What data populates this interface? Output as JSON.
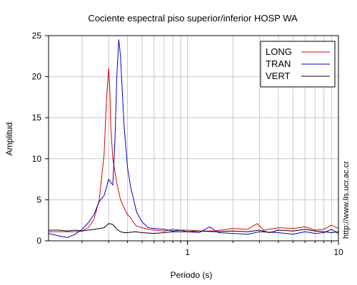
{
  "chart_data": {
    "type": "line",
    "title": "Cociente espectral piso superior/inferior  HOSP WA",
    "xlabel": "Periodo (s)",
    "ylabel": "Amplitud",
    "x_scale": "log",
    "xlim": [
      0.12,
      10
    ],
    "ylim": [
      0,
      25
    ],
    "yticks": [
      0,
      5,
      10,
      15,
      20,
      25
    ],
    "xticks": [
      1,
      10
    ],
    "grid": true,
    "legend_position": "top-right",
    "watermark": "http://www.lis.ucr.ac.cr",
    "series": [
      {
        "name": "LONG",
        "color": "#e00000",
        "points": [
          [
            0.12,
            1.1
          ],
          [
            0.15,
            1.1
          ],
          [
            0.18,
            1.1
          ],
          [
            0.2,
            1.2
          ],
          [
            0.22,
            1.6
          ],
          [
            0.24,
            2.6
          ],
          [
            0.26,
            5.0
          ],
          [
            0.28,
            10.5
          ],
          [
            0.29,
            17.0
          ],
          [
            0.3,
            21.0
          ],
          [
            0.305,
            19.0
          ],
          [
            0.31,
            14.0
          ],
          [
            0.32,
            10.0
          ],
          [
            0.34,
            7.0
          ],
          [
            0.36,
            5.0
          ],
          [
            0.38,
            4.0
          ],
          [
            0.4,
            3.2
          ],
          [
            0.42,
            2.8
          ],
          [
            0.44,
            2.2
          ],
          [
            0.46,
            1.8
          ],
          [
            0.5,
            1.6
          ],
          [
            0.55,
            1.4
          ],
          [
            0.6,
            1.3
          ],
          [
            0.7,
            1.2
          ],
          [
            0.8,
            1.4
          ],
          [
            0.9,
            1.3
          ],
          [
            1.0,
            1.3
          ],
          [
            1.2,
            1.2
          ],
          [
            1.5,
            1.2
          ],
          [
            2.0,
            1.5
          ],
          [
            2.5,
            1.4
          ],
          [
            2.9,
            2.1
          ],
          [
            3.2,
            1.3
          ],
          [
            4.0,
            1.6
          ],
          [
            5.0,
            1.5
          ],
          [
            6.0,
            1.7
          ],
          [
            7.0,
            1.3
          ],
          [
            8.0,
            1.4
          ],
          [
            9.0,
            1.9
          ],
          [
            10.0,
            1.5
          ]
        ]
      },
      {
        "name": "TRAN",
        "color": "#0000d0",
        "points": [
          [
            0.12,
            0.9
          ],
          [
            0.14,
            0.6
          ],
          [
            0.16,
            0.4
          ],
          [
            0.18,
            0.8
          ],
          [
            0.2,
            1.4
          ],
          [
            0.22,
            2.2
          ],
          [
            0.24,
            3.2
          ],
          [
            0.26,
            4.8
          ],
          [
            0.28,
            5.5
          ],
          [
            0.3,
            7.5
          ],
          [
            0.32,
            6.8
          ],
          [
            0.33,
            12.0
          ],
          [
            0.34,
            20.0
          ],
          [
            0.35,
            24.5
          ],
          [
            0.36,
            22.5
          ],
          [
            0.37,
            18.0
          ],
          [
            0.38,
            14.0
          ],
          [
            0.4,
            9.0
          ],
          [
            0.42,
            6.5
          ],
          [
            0.44,
            5.0
          ],
          [
            0.46,
            3.5
          ],
          [
            0.5,
            2.3
          ],
          [
            0.55,
            1.6
          ],
          [
            0.6,
            1.5
          ],
          [
            0.7,
            1.4
          ],
          [
            0.8,
            1.2
          ],
          [
            0.9,
            1.3
          ],
          [
            1.0,
            1.1
          ],
          [
            1.2,
            1.0
          ],
          [
            1.4,
            1.7
          ],
          [
            1.6,
            1.0
          ],
          [
            2.0,
            0.9
          ],
          [
            2.5,
            0.8
          ],
          [
            3.0,
            1.1
          ],
          [
            4.0,
            1.0
          ],
          [
            5.0,
            0.8
          ],
          [
            6.0,
            1.1
          ],
          [
            7.0,
            0.9
          ],
          [
            8.0,
            1.0
          ],
          [
            9.0,
            1.4
          ],
          [
            10.0,
            0.9
          ]
        ]
      },
      {
        "name": "VERT",
        "color": "#000000",
        "points": [
          [
            0.12,
            1.3
          ],
          [
            0.14,
            1.3
          ],
          [
            0.16,
            1.2
          ],
          [
            0.18,
            1.3
          ],
          [
            0.2,
            1.2
          ],
          [
            0.22,
            1.3
          ],
          [
            0.24,
            1.4
          ],
          [
            0.26,
            1.5
          ],
          [
            0.28,
            1.6
          ],
          [
            0.3,
            2.1
          ],
          [
            0.32,
            2.0
          ],
          [
            0.34,
            1.4
          ],
          [
            0.36,
            1.1
          ],
          [
            0.38,
            1.0
          ],
          [
            0.4,
            1.0
          ],
          [
            0.45,
            1.1
          ],
          [
            0.5,
            1.0
          ],
          [
            0.6,
            0.9
          ],
          [
            0.7,
            1.0
          ],
          [
            0.8,
            1.1
          ],
          [
            1.0,
            1.1
          ],
          [
            1.2,
            1.2
          ],
          [
            1.5,
            1.1
          ],
          [
            2.0,
            1.2
          ],
          [
            2.5,
            1.1
          ],
          [
            3.0,
            1.3
          ],
          [
            3.5,
            1.0
          ],
          [
            4.0,
            1.3
          ],
          [
            5.0,
            1.2
          ],
          [
            6.0,
            1.4
          ],
          [
            7.0,
            1.2
          ],
          [
            8.0,
            1.1
          ],
          [
            9.0,
            1.0
          ],
          [
            10.0,
            1.1
          ]
        ]
      }
    ]
  }
}
